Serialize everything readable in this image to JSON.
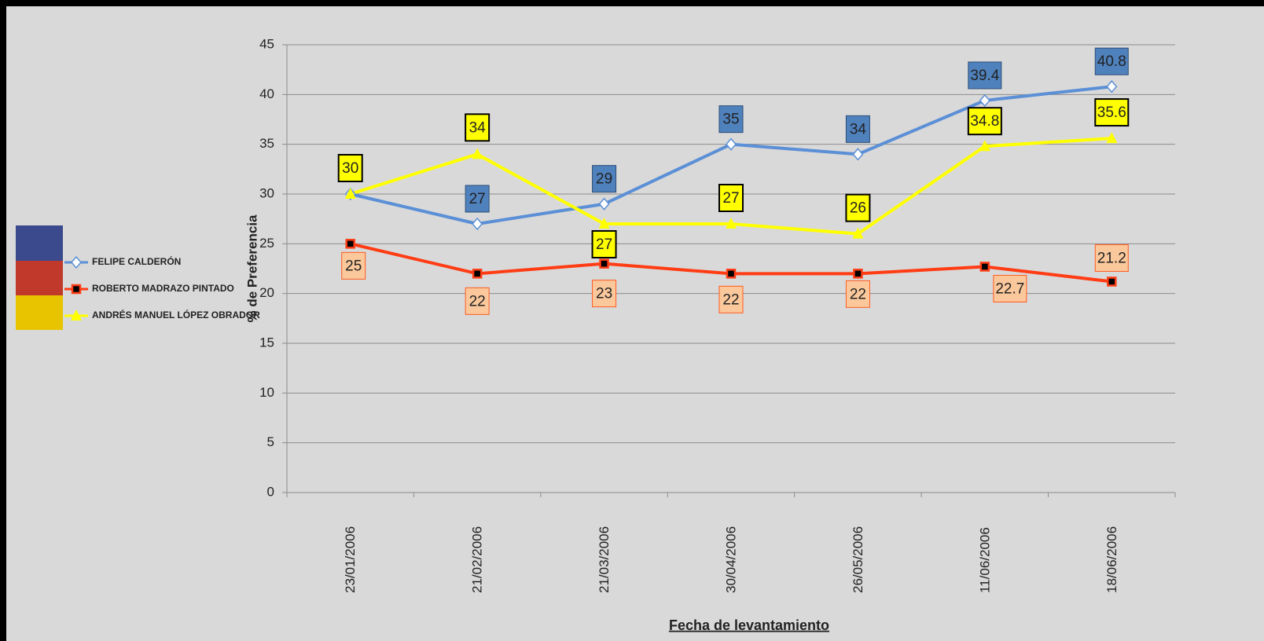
{
  "chart_data": {
    "type": "line",
    "y_label": "% de Preferencia",
    "x_label": "Fecha de levantamiento",
    "categories": [
      "23/01/2006",
      "21/02/2006",
      "21/03/2006",
      "30/04/2006",
      "26/05/2006",
      "11/06/2006",
      "18/06/2006"
    ],
    "series": [
      {
        "name": "FELIPE CALDERÓN",
        "color": "#5b8fd6",
        "values": [
          30,
          27,
          29,
          35,
          34,
          39.4,
          40.8
        ]
      },
      {
        "name": "ROBERTO MADRAZO PINTADO",
        "color": "#ff3c14",
        "values": [
          25,
          22,
          23,
          22,
          22,
          22.7,
          21.2
        ]
      },
      {
        "name": "ANDRÉS MANUEL LÓPEZ OBRADOR",
        "color": "#ffff00",
        "values": [
          30,
          34,
          27,
          27,
          26,
          34.8,
          35.6
        ]
      }
    ],
    "ylim": [
      0,
      45
    ],
    "yticks": [
      0,
      5,
      10,
      15,
      20,
      25,
      30,
      35,
      40,
      45
    ],
    "grid": true,
    "legend": "left"
  }
}
